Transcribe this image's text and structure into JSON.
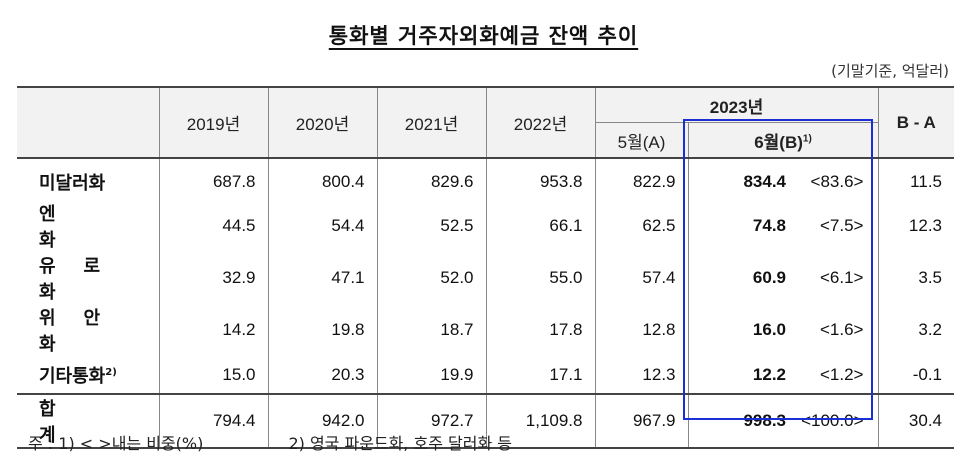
{
  "title": "통화별 거주자외화예금 잔액 추이",
  "unit": "(기말기준, 억달러)",
  "header": {
    "years": [
      "2019년",
      "2020년",
      "2021년",
      "2022년"
    ],
    "year_2023": "2023년",
    "may": "5월(A)",
    "june": "6월(B)",
    "june_note": "1)",
    "diff": "B - A"
  },
  "rows": [
    {
      "label": "미달러화",
      "note": "",
      "v2019": "687.8",
      "v2020": "800.4",
      "v2021": "829.6",
      "v2022": "953.8",
      "may": "822.9",
      "june": "834.4",
      "ratio": "<83.6>",
      "diff": "11.5"
    },
    {
      "label": "엔 화",
      "note": "",
      "v2019": "44.5",
      "v2020": "54.4",
      "v2021": "52.5",
      "v2022": "66.1",
      "may": "62.5",
      "june": "74.8",
      "ratio": "<7.5>",
      "diff": "12.3"
    },
    {
      "label": "유로화",
      "note": "",
      "v2019": "32.9",
      "v2020": "47.1",
      "v2021": "52.0",
      "v2022": "55.0",
      "may": "57.4",
      "june": "60.9",
      "ratio": "<6.1>",
      "diff": "3.5"
    },
    {
      "label": "위안화",
      "note": "",
      "v2019": "14.2",
      "v2020": "19.8",
      "v2021": "18.7",
      "v2022": "17.8",
      "may": "12.8",
      "june": "16.0",
      "ratio": "<1.6>",
      "diff": "3.2"
    },
    {
      "label": "기타통화",
      "note": "2)",
      "v2019": "15.0",
      "v2020": "20.3",
      "v2021": "19.9",
      "v2022": "17.1",
      "may": "12.3",
      "june": "12.2",
      "ratio": "<1.2>",
      "diff": "-0.1"
    }
  ],
  "total": {
    "label": "합 계",
    "v2019": "794.4",
    "v2020": "942.0",
    "v2021": "972.7",
    "v2022": "1,109.8",
    "may": "967.9",
    "june": "998.3",
    "ratio": "<100.0>",
    "diff": "30.4"
  },
  "notes": {
    "n1": "주 : 1) < >내는 비중(%)",
    "n2": "2) 영국 파운드화, 호주 달러화 등"
  },
  "colors": {
    "highlight_border": "#1a2fd6",
    "header_bg": "#f2f2f2"
  }
}
